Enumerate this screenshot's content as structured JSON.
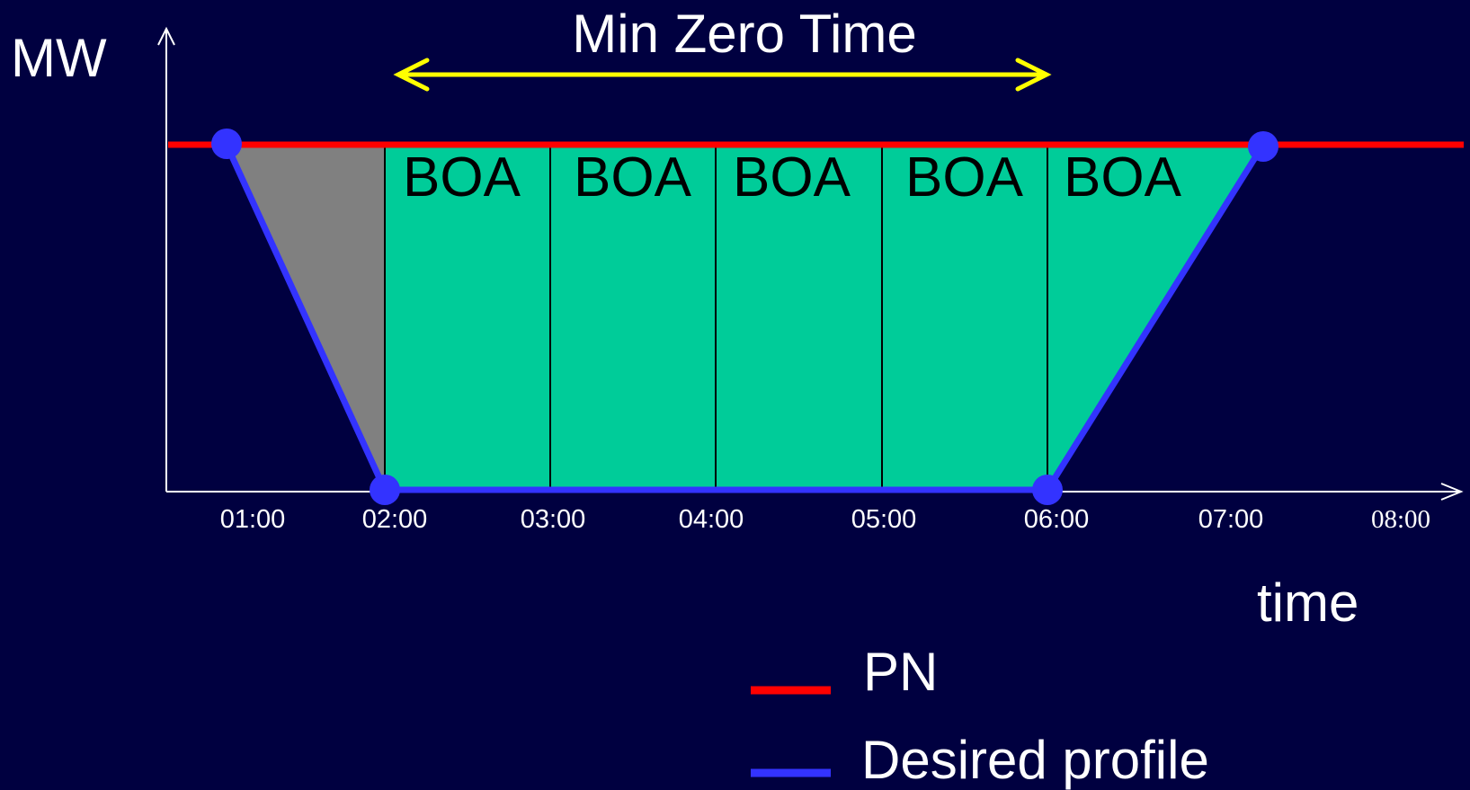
{
  "labels": {
    "y_axis": "MW",
    "x_axis": "time",
    "span_label": "Min Zero Time"
  },
  "ticks": [
    "01:00",
    "02:00",
    "03:00",
    "04:00",
    "05:00",
    "06:00",
    "07:00",
    "08:00"
  ],
  "boa_blocks": [
    "BOA",
    "BOA",
    "BOA",
    "BOA",
    "BOA"
  ],
  "legend": [
    {
      "label": "PN",
      "color": "#ff0000"
    },
    {
      "label": "Desired profile",
      "color": "#3333ff"
    }
  ],
  "colors": {
    "background": "#000040",
    "axis": "#ffffff",
    "pn_line": "#ff0000",
    "profile_line": "#3333ff",
    "boa_fill": "#00cc99",
    "ramp_fill": "#808080",
    "span_arrow": "#ffff00",
    "text": "#ffffff",
    "boa_text": "#000000"
  }
}
